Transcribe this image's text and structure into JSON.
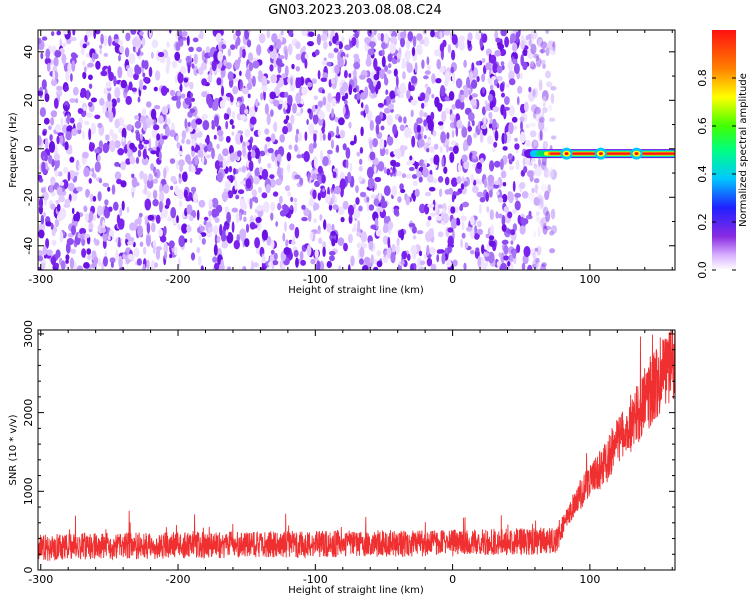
{
  "title": "GN03.2023.203.08.08.C24",
  "colors": {
    "noise": "#7b22ee",
    "snr_line": "#f03030",
    "colormap": [
      "#ffffff",
      "#d9b3ff",
      "#8a2be2",
      "#2020ff",
      "#00c8ff",
      "#00ff80",
      "#40ff00",
      "#ffff00",
      "#ff8000",
      "#ff1010"
    ]
  },
  "chart_data": [
    {
      "type": "heatmap",
      "xlabel": "Height of straight line (km)",
      "ylabel": "Frequency (Hz)",
      "xlim": [
        -302,
        162
      ],
      "ylim": [
        -50,
        49
      ],
      "xticks": [
        -300,
        -200,
        -100,
        0,
        100
      ],
      "yticks": [
        -40,
        -20,
        0,
        20,
        40
      ],
      "noise_region_x": [
        -302,
        68
      ],
      "signal_band": {
        "x_start": 52,
        "x_end": 162,
        "frequency": -2,
        "bright_spots_x": [
          83,
          108,
          134
        ]
      },
      "colorbar": {
        "label": "Normalized spectral amplitude",
        "range": [
          0,
          1
        ],
        "ticks": [
          0.0,
          0.2,
          0.4,
          0.6,
          0.8
        ]
      }
    },
    {
      "type": "line",
      "xlabel": "Height of straight line (km)",
      "ylabel": "SNR (10 * v/v)",
      "xlim": [
        -302,
        162
      ],
      "ylim": [
        0,
        3050
      ],
      "xticks": [
        -300,
        -200,
        -100,
        0,
        100
      ],
      "yticks": [
        0,
        1000,
        2000,
        3000
      ],
      "series": [
        {
          "x": [
            -302,
            -250,
            -200,
            -150,
            -100,
            -50,
            0,
            50,
            75,
            90,
            100,
            110,
            120,
            130,
            140,
            150,
            162
          ],
          "y": [
            300,
            320,
            330,
            340,
            350,
            355,
            360,
            380,
            390,
            900,
            1150,
            1350,
            1650,
            1900,
            2200,
            2500,
            2700
          ]
        }
      ]
    }
  ]
}
